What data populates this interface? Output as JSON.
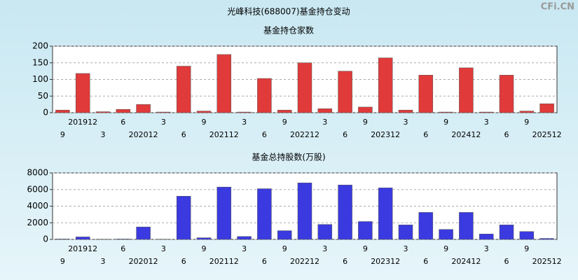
{
  "title": "光峰科技(688007)基金持仓变动",
  "watermark": "CFi.CN",
  "chart_data": [
    {
      "type": "bar",
      "title": "基金持仓家数",
      "categories": [
        "9",
        "201912",
        "3",
        "6",
        "202012",
        "3",
        "6",
        "9",
        "202112",
        "3",
        "6",
        "9",
        "202212",
        "3",
        "6",
        "9",
        "202312",
        "3",
        "6",
        "9",
        "202412",
        "3",
        "6",
        "9",
        "202512"
      ],
      "values": [
        8,
        118,
        3,
        10,
        25,
        2,
        140,
        5,
        175,
        2,
        103,
        8,
        150,
        12,
        125,
        17,
        165,
        8,
        113,
        2,
        135,
        2,
        113,
        5,
        27
      ],
      "color": "#e03a3a",
      "ylim": [
        0,
        200
      ],
      "yticks": [
        0,
        50,
        100,
        150,
        200
      ],
      "grid": true
    },
    {
      "type": "bar",
      "title": "基金总持股数(万股)",
      "categories": [
        "9",
        "201912",
        "3",
        "6",
        "202012",
        "3",
        "6",
        "9",
        "202112",
        "3",
        "6",
        "9",
        "202212",
        "3",
        "6",
        "9",
        "202312",
        "3",
        "6",
        "9",
        "202412",
        "3",
        "6",
        "9",
        "202512"
      ],
      "values": [
        50,
        300,
        30,
        50,
        1500,
        30,
        5200,
        200,
        6300,
        350,
        6100,
        1050,
        6800,
        1800,
        6550,
        2150,
        6200,
        1750,
        3250,
        1200,
        3250,
        650,
        1750,
        950,
        120
      ],
      "color": "#3a3ae0",
      "ylim": [
        0,
        8000
      ],
      "yticks": [
        0,
        2000,
        4000,
        6000,
        8000
      ],
      "grid": true
    }
  ]
}
